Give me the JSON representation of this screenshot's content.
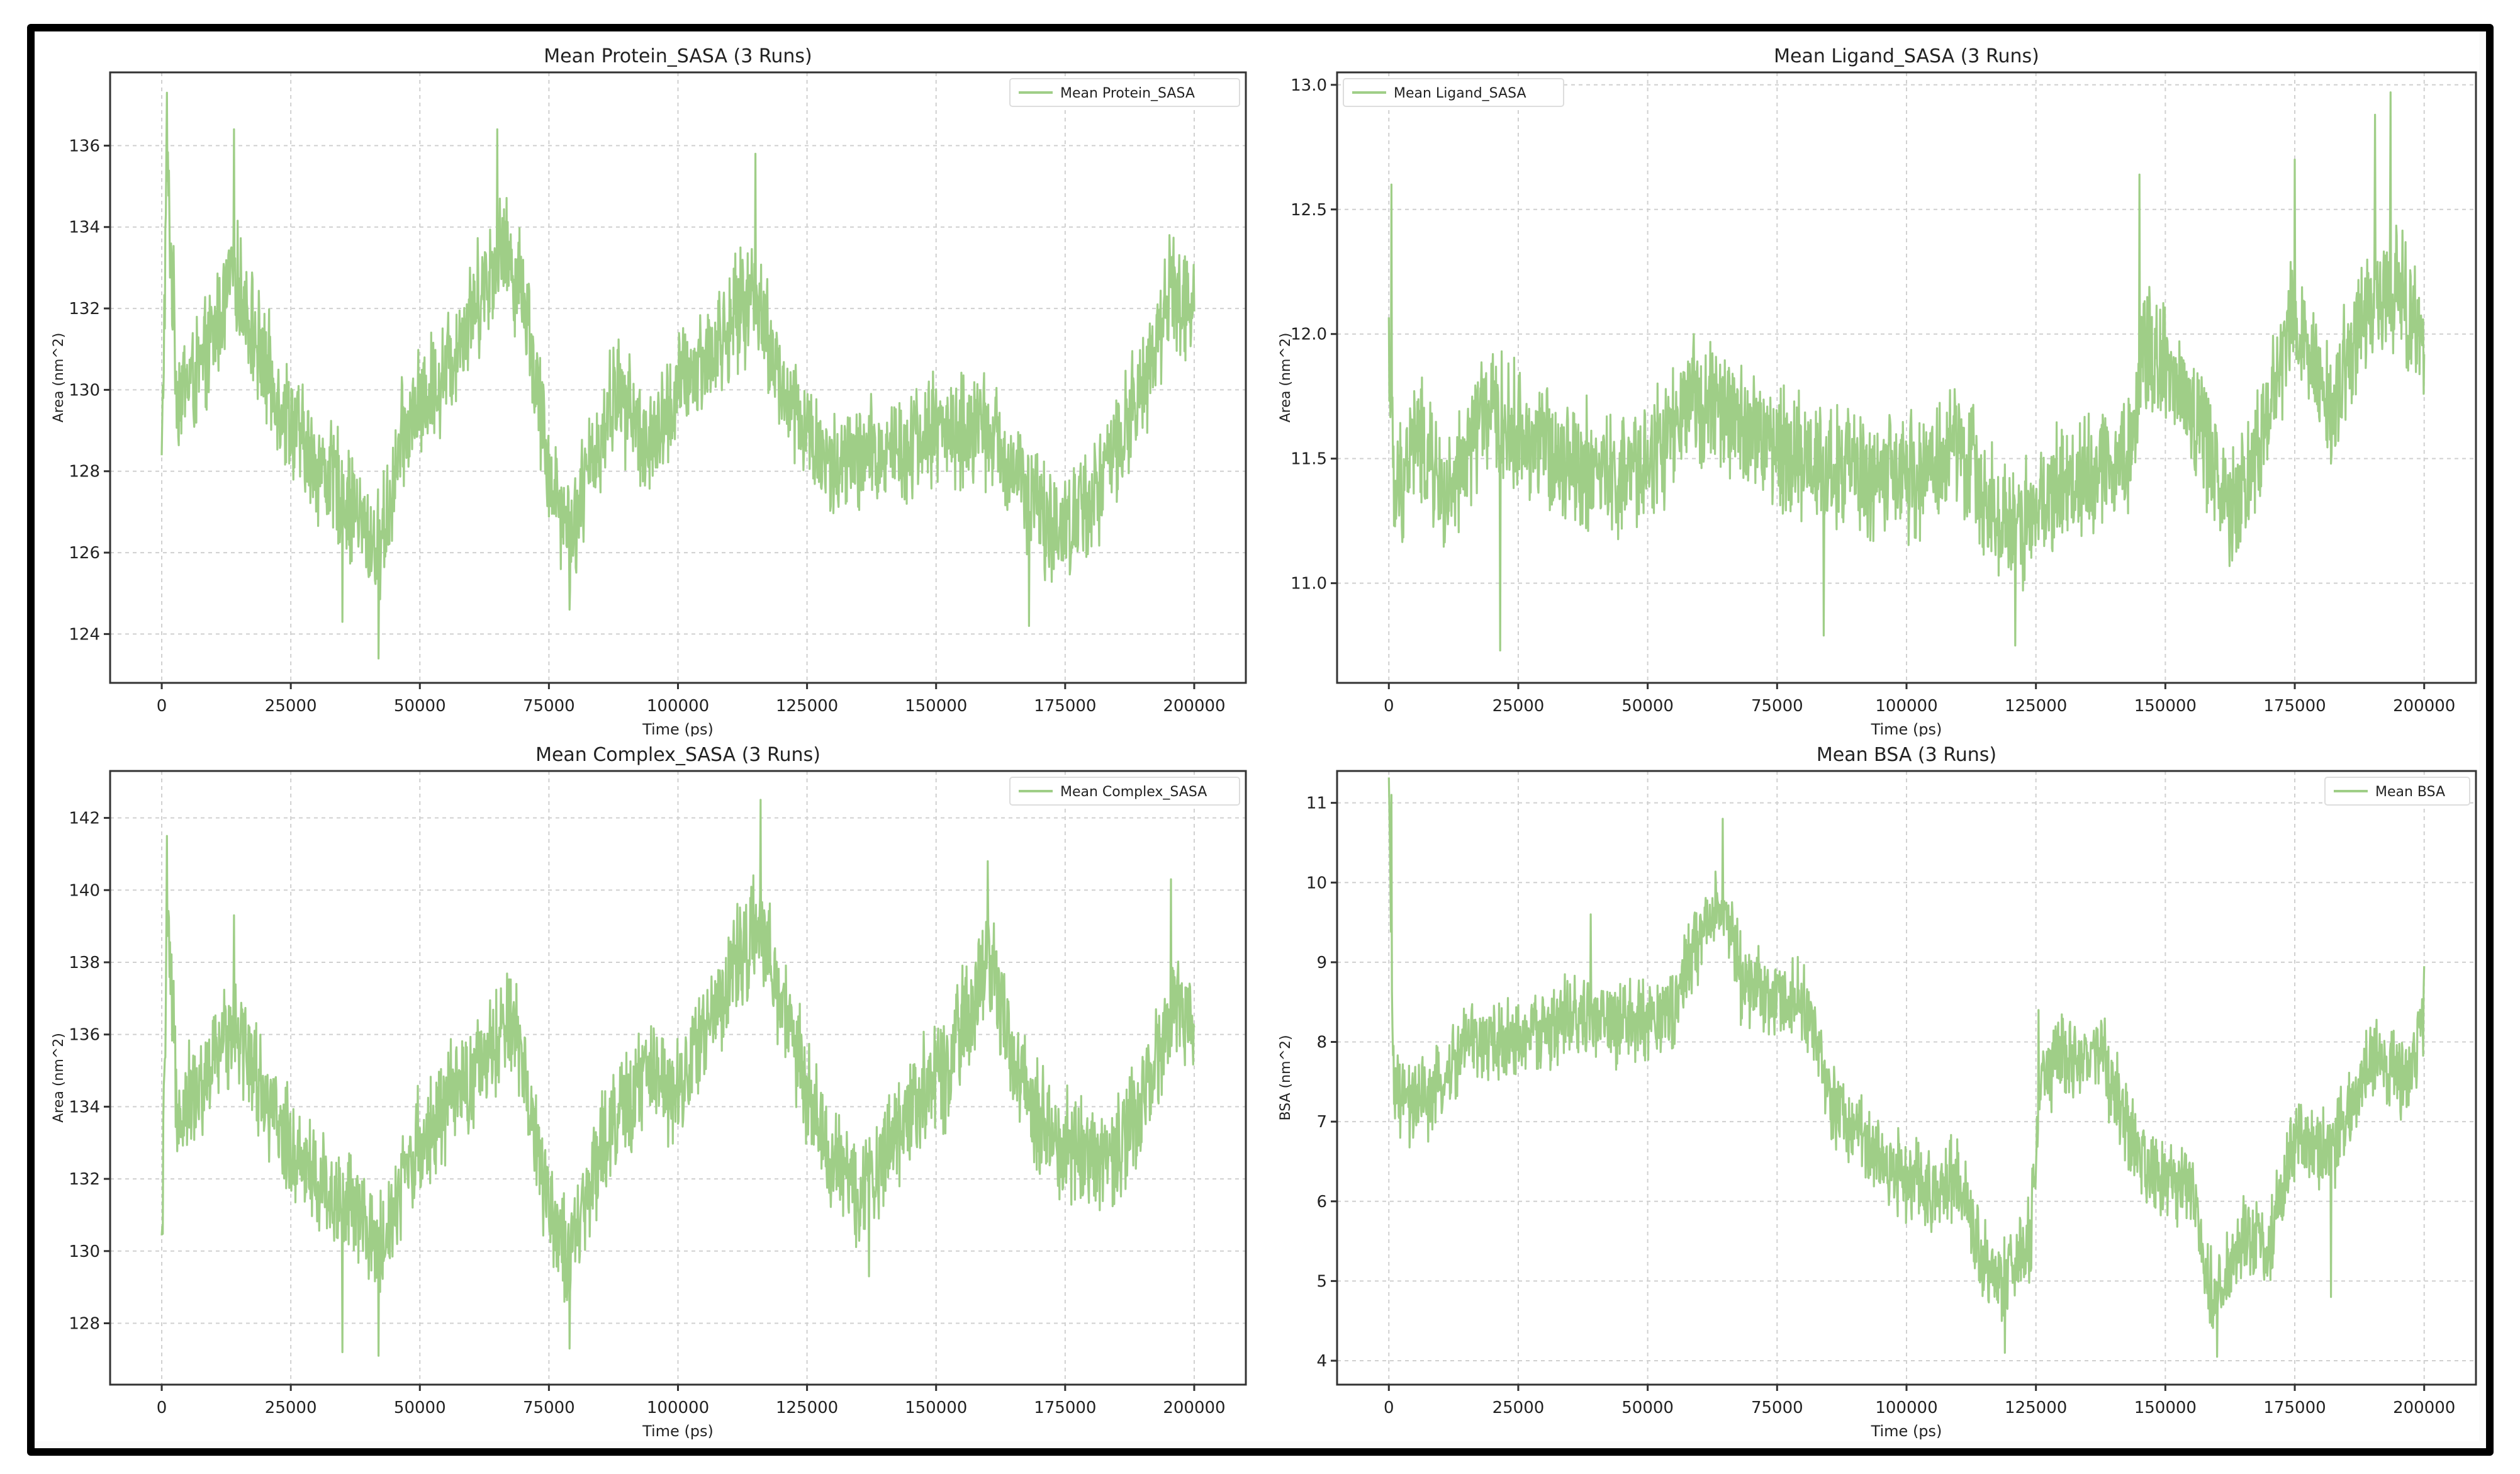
{
  "figure": {
    "line_color": "#9fce87",
    "grid_color": "#d0d0d0",
    "axes_color": "#333333"
  },
  "chart_data": [
    {
      "id": "protein",
      "type": "line",
      "title": "Mean Protein_SASA (3 Runs)",
      "xlabel": "Time (ps)",
      "ylabel": "Area (nm^2)",
      "legend": {
        "label": "Mean Protein_SASA",
        "position": "upper right"
      },
      "grid": true,
      "xlim": [
        -10000,
        210000
      ],
      "ylim": [
        122.8,
        137.8
      ],
      "xticks": [
        0,
        25000,
        50000,
        75000,
        100000,
        125000,
        150000,
        175000,
        200000
      ],
      "xtick_labels": [
        "0",
        "25000",
        "50000",
        "75000",
        "100000",
        "125000",
        "150000",
        "175000",
        "200000"
      ],
      "yticks": [
        124,
        126,
        128,
        130,
        132,
        134,
        136
      ],
      "ytick_labels": [
        "124",
        "126",
        "128",
        "130",
        "132",
        "134",
        "136"
      ],
      "series": [
        {
          "name": "Mean Protein_SASA",
          "x": [
            0,
            1000,
            3000,
            8000,
            14000,
            20000,
            28000,
            35000,
            42000,
            47000,
            55000,
            62000,
            66000,
            70000,
            75000,
            79000,
            88000,
            95000,
            100000,
            107000,
            115000,
            120000,
            130000,
            140000,
            150000,
            160000,
            170000,
            175000,
            183000,
            190000,
            195000,
            200000
          ],
          "y": [
            128,
            135.5,
            130,
            130.5,
            133,
            130.5,
            128.5,
            127.5,
            126,
            129,
            130.5,
            132.5,
            133.5,
            132.5,
            128,
            126.5,
            130,
            128.5,
            130,
            131,
            132.5,
            130,
            128,
            128.5,
            129,
            129,
            127,
            126.5,
            128,
            130,
            132.5,
            132
          ],
          "noise": 1.2,
          "spikes": [
            [
              1000,
              137.3
            ],
            [
              14000,
              136.4
            ],
            [
              42000,
              123.4
            ],
            [
              35000,
              124.3
            ],
            [
              65000,
              136.4
            ],
            [
              115000,
              135.8
            ],
            [
              168000,
              124.2
            ],
            [
              79000,
              124.6
            ]
          ]
        }
      ]
    },
    {
      "id": "ligand",
      "type": "line",
      "title": "Mean Ligand_SASA (3 Runs)",
      "xlabel": "Time (ps)",
      "ylabel": "Area (nm^2)",
      "legend": {
        "label": "Mean Ligand_SASA",
        "position": "upper left"
      },
      "grid": true,
      "xlim": [
        -10000,
        210000
      ],
      "ylim": [
        10.6,
        13.05
      ],
      "xticks": [
        0,
        25000,
        50000,
        75000,
        100000,
        125000,
        150000,
        175000,
        200000
      ],
      "xtick_labels": [
        "0",
        "25000",
        "50000",
        "75000",
        "100000",
        "125000",
        "150000",
        "175000",
        "200000"
      ],
      "yticks": [
        11.0,
        11.5,
        12.0,
        12.5,
        13.0
      ],
      "ytick_labels": [
        "11.0",
        "11.5",
        "12.0",
        "12.5",
        "13.0"
      ],
      "series": [
        {
          "name": "Mean Ligand_SASA",
          "x": [
            0,
            1000,
            5000,
            12000,
            18000,
            25000,
            35000,
            45000,
            55000,
            60000,
            70000,
            80000,
            90000,
            100000,
            110000,
            120000,
            125000,
            135000,
            143000,
            146000,
            155000,
            163000,
            170000,
            175000,
            182000,
            188000,
            195000,
            200000
          ],
          "y": [
            12.0,
            11.3,
            11.6,
            11.3,
            11.7,
            11.6,
            11.5,
            11.4,
            11.6,
            11.75,
            11.6,
            11.5,
            11.45,
            11.4,
            11.55,
            11.2,
            11.3,
            11.45,
            11.5,
            12.0,
            11.7,
            11.3,
            11.7,
            12.1,
            11.7,
            12.05,
            12.2,
            11.9
          ],
          "noise": 0.22,
          "spikes": [
            [
              500,
              12.6
            ],
            [
              21500,
              10.73
            ],
            [
              193500,
              12.97
            ],
            [
              190500,
              12.88
            ],
            [
              175000,
              12.7
            ],
            [
              145000,
              12.64
            ],
            [
              121000,
              10.75
            ],
            [
              84000,
              10.79
            ]
          ]
        }
      ]
    },
    {
      "id": "complex",
      "type": "line",
      "title": "Mean Complex_SASA (3 Runs)",
      "xlabel": "Time (ps)",
      "ylabel": "Area (nm^2)",
      "legend": {
        "label": "Mean Complex_SASA",
        "position": "upper right"
      },
      "grid": true,
      "xlim": [
        -10000,
        210000
      ],
      "ylim": [
        126.3,
        143.3
      ],
      "xticks": [
        0,
        25000,
        50000,
        75000,
        100000,
        125000,
        150000,
        175000,
        200000
      ],
      "xtick_labels": [
        "0",
        "25000",
        "50000",
        "75000",
        "100000",
        "125000",
        "150000",
        "175000",
        "200000"
      ],
      "yticks": [
        128,
        130,
        132,
        134,
        136,
        138,
        140,
        142
      ],
      "ytick_labels": [
        "128",
        "130",
        "132",
        "134",
        "136",
        "138",
        "140",
        "142"
      ],
      "series": [
        {
          "name": "Mean Complex_SASA",
          "x": [
            0,
            1000,
            3000,
            8000,
            14000,
            22000,
            30000,
            38000,
            42000,
            48000,
            55000,
            62000,
            68000,
            74000,
            79000,
            85000,
            95000,
            100000,
            108000,
            115000,
            120000,
            128000,
            135000,
            145000,
            152000,
            160000,
            168000,
            175000,
            183000,
            190000,
            196000,
            200000
          ],
          "y": [
            129.5,
            139,
            134,
            134.5,
            136.5,
            133.5,
            132,
            131,
            130,
            132.5,
            134,
            135,
            136.5,
            132,
            129.5,
            133,
            135,
            134.5,
            137,
            139,
            137,
            133,
            131.5,
            134,
            135,
            138,
            134,
            133,
            132.5,
            134,
            137,
            136
          ],
          "noise": 1.3,
          "spikes": [
            [
              1000,
              141.5
            ],
            [
              14000,
              139.3
            ],
            [
              42000,
              127.1
            ],
            [
              35000,
              127.2
            ],
            [
              79000,
              127.3
            ],
            [
              116000,
              142.5
            ],
            [
              160000,
              140.8
            ],
            [
              195500,
              140.3
            ],
            [
              137000,
              129.3
            ]
          ]
        }
      ]
    },
    {
      "id": "bsa",
      "type": "line",
      "title": "Mean BSA (3 Runs)",
      "xlabel": "Time (ps)",
      "ylabel": "BSA (nm^2)",
      "legend": {
        "label": "Mean BSA",
        "position": "upper right"
      },
      "grid": true,
      "xlim": [
        -10000,
        210000
      ],
      "ylim": [
        3.7,
        11.4
      ],
      "xticks": [
        0,
        25000,
        50000,
        75000,
        100000,
        125000,
        150000,
        175000,
        200000
      ],
      "xtick_labels": [
        "0",
        "25000",
        "50000",
        "75000",
        "100000",
        "125000",
        "150000",
        "175000",
        "200000"
      ],
      "yticks": [
        4,
        5,
        6,
        7,
        8,
        9,
        10,
        11
      ],
      "ytick_labels": [
        "4",
        "5",
        "6",
        "7",
        "8",
        "9",
        "10",
        "11"
      ],
      "series": [
        {
          "name": "Mean BSA",
          "x": [
            0,
            1000,
            5000,
            10000,
            15000,
            25000,
            35000,
            45000,
            55000,
            60000,
            64000,
            68000,
            75000,
            80000,
            85000,
            95000,
            105000,
            110000,
            115000,
            119000,
            124000,
            126000,
            130000,
            138000,
            145000,
            150000,
            155000,
            159000,
            165000,
            170000,
            175000,
            182000,
            190000,
            196000,
            200000
          ],
          "y": [
            11.0,
            7.3,
            7.2,
            7.4,
            8.0,
            8.0,
            8.3,
            8.2,
            8.4,
            9.3,
            9.8,
            8.8,
            8.5,
            8.6,
            7.3,
            6.5,
            6.1,
            6.3,
            5.2,
            5.0,
            5.5,
            7.6,
            7.8,
            7.8,
            6.5,
            6.3,
            6.1,
            4.8,
            5.5,
            5.4,
            6.8,
            6.6,
            7.8,
            7.5,
            8.2
          ],
          "noise": 0.45,
          "spikes": [
            [
              500,
              11.1
            ],
            [
              64500,
              10.8
            ],
            [
              119000,
              4.1
            ],
            [
              160000,
              4.05
            ],
            [
              39000,
              9.6
            ],
            [
              125500,
              8.4
            ],
            [
              200000,
              8.95
            ],
            [
              182000,
              4.8
            ]
          ]
        }
      ]
    }
  ]
}
